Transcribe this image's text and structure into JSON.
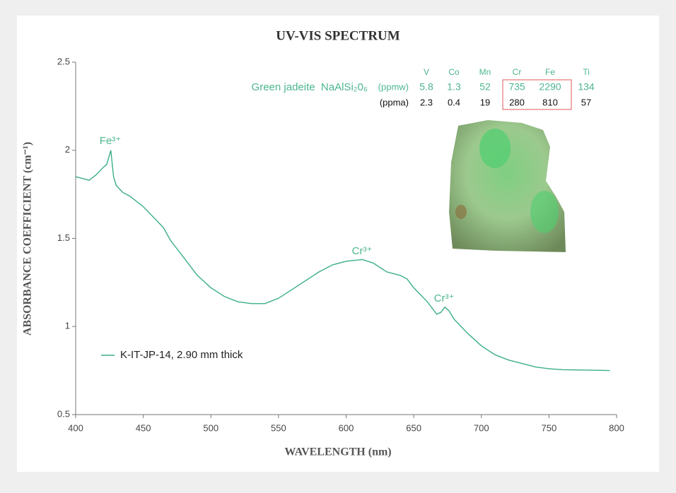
{
  "chart_data": {
    "type": "line",
    "title": "UV-VIS SPECTRUM",
    "x_label": "WAVELENGTH (nm)",
    "y_label": "ABSORBANCE COEFFICIENT (cm⁻¹)",
    "xlim": [
      400,
      800
    ],
    "ylim": [
      0.5,
      2.5
    ],
    "xticks": [
      400,
      450,
      500,
      550,
      600,
      650,
      700,
      750,
      800
    ],
    "yticks": [
      0.5,
      1,
      1.5,
      2,
      2.5
    ],
    "grid": false,
    "legend_position": "left",
    "x": [
      400,
      405,
      410,
      415,
      420,
      423,
      426,
      428,
      430,
      435,
      440,
      450,
      460,
      465,
      470,
      480,
      490,
      500,
      510,
      520,
      530,
      540,
      550,
      560,
      570,
      580,
      590,
      600,
      612,
      620,
      630,
      640,
      645,
      650,
      660,
      667,
      670,
      673,
      676,
      680,
      690,
      700,
      710,
      720,
      730,
      740,
      750,
      760,
      780,
      795
    ],
    "series": [
      {
        "name": "K-IT-JP-14, 2.90 mm thick",
        "color": "#3aae87",
        "values": [
          1.85,
          1.84,
          1.83,
          1.86,
          1.9,
          1.92,
          2.0,
          1.85,
          1.8,
          1.76,
          1.74,
          1.68,
          1.6,
          1.56,
          1.49,
          1.39,
          1.29,
          1.22,
          1.17,
          1.14,
          1.13,
          1.13,
          1.16,
          1.21,
          1.26,
          1.31,
          1.35,
          1.37,
          1.38,
          1.36,
          1.31,
          1.29,
          1.27,
          1.22,
          1.14,
          1.07,
          1.08,
          1.11,
          1.09,
          1.04,
          0.96,
          0.89,
          0.84,
          0.81,
          0.79,
          0.77,
          0.76,
          0.755,
          0.752,
          0.75
        ]
      }
    ],
    "annotations": [
      "Fe³⁺",
      "Cr³⁺",
      "Cr³⁺"
    ],
    "composition": {
      "elements": [
        "V",
        "Co",
        "Mn",
        "Cr",
        "Fe",
        "Ti"
      ],
      "rows": [
        {
          "label": "Green jadeite  NaAlSi₂0₆",
          "unit": "(ppmw)",
          "values": [
            5.8,
            1.3,
            52,
            735,
            2290,
            134
          ]
        },
        {
          "unit": "(ppma)",
          "values": [
            2.3,
            0.4,
            19,
            280,
            810,
            57
          ]
        }
      ]
    }
  }
}
